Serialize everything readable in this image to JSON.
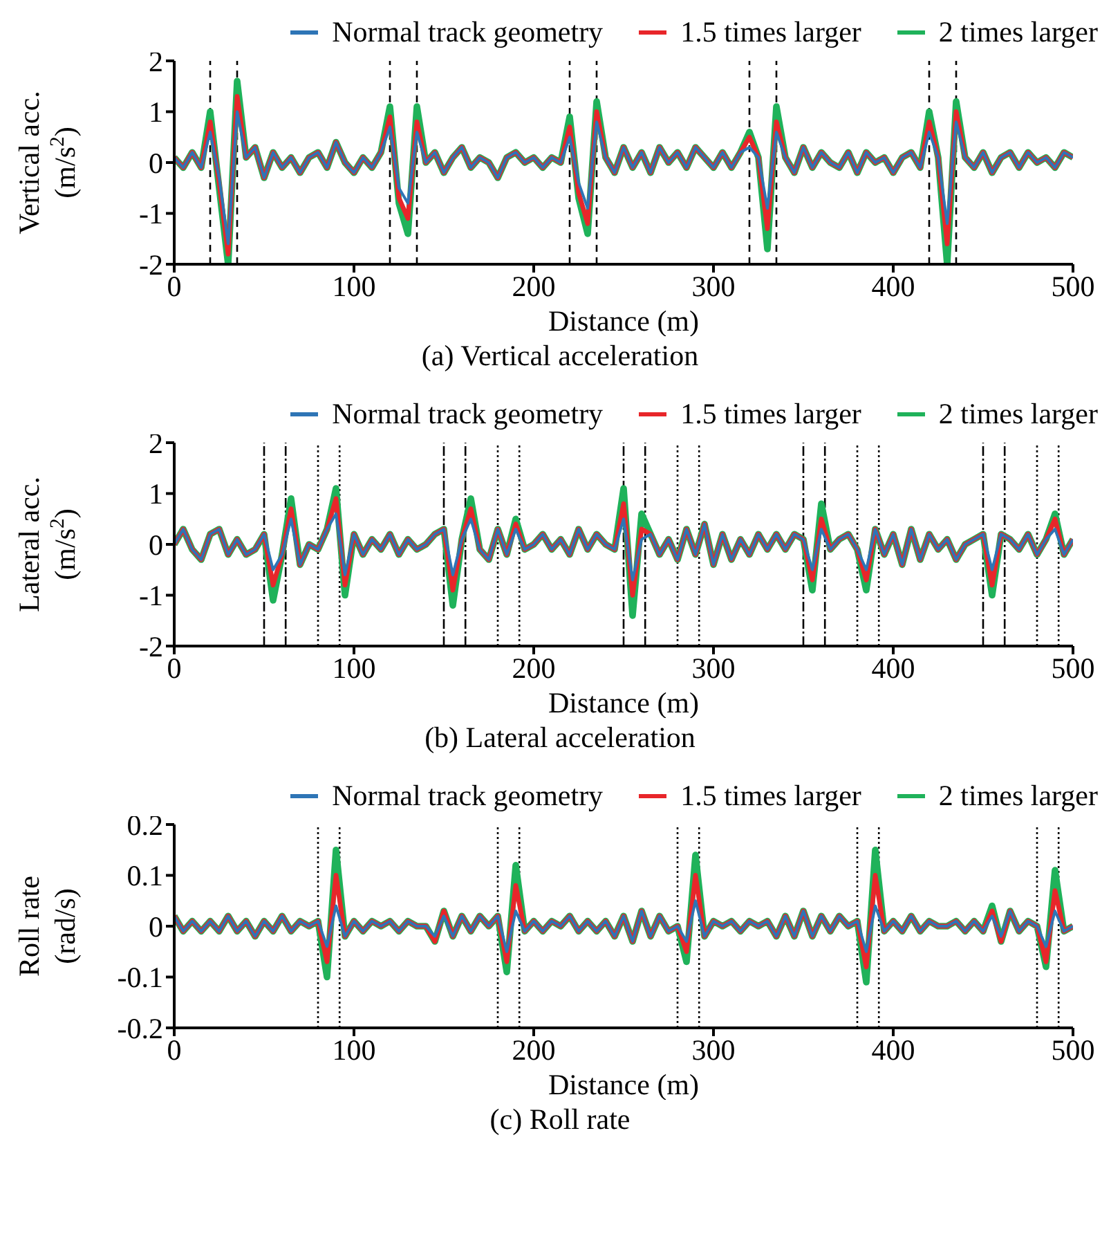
{
  "chart_data": [
    {
      "type": "line",
      "title": "(a) Vertical acceleration",
      "xlabel": "Distance (m)",
      "ylabel": "Vertical acc. (m/s$^{2}$)",
      "legend": "top",
      "xlim": [
        0,
        500
      ],
      "xticks": [
        0,
        100,
        200,
        300,
        400,
        500
      ],
      "ylim": [
        -2,
        2
      ],
      "yticks": [
        -2,
        -1,
        0,
        1,
        2
      ],
      "x": [
        0,
        5,
        10,
        15,
        20,
        25,
        30,
        35,
        40,
        45,
        50,
        55,
        60,
        65,
        70,
        75,
        80,
        85,
        90,
        95,
        100,
        105,
        110,
        115,
        120,
        125,
        130,
        135,
        140,
        145,
        150,
        155,
        160,
        165,
        170,
        175,
        180,
        185,
        190,
        195,
        200,
        205,
        210,
        215,
        220,
        225,
        230,
        235,
        240,
        245,
        250,
        255,
        260,
        265,
        270,
        275,
        280,
        285,
        290,
        295,
        300,
        305,
        310,
        315,
        320,
        325,
        330,
        335,
        340,
        345,
        350,
        355,
        360,
        365,
        370,
        375,
        380,
        385,
        390,
        395,
        400,
        405,
        410,
        415,
        420,
        425,
        430,
        435,
        440,
        445,
        450,
        455,
        460,
        465,
        470,
        475,
        480,
        485,
        490,
        495,
        500
      ],
      "series": [
        {
          "name": "Normal track geometry",
          "color": "#2e75b6",
          "values": [
            0.1,
            -0.1,
            0.2,
            -0.1,
            0.6,
            -0.3,
            -1.6,
            1.0,
            0.1,
            0.3,
            -0.3,
            0.2,
            -0.1,
            0.1,
            -0.2,
            0.1,
            0.2,
            -0.1,
            0.4,
            0.0,
            -0.2,
            0.1,
            -0.1,
            0.2,
            0.7,
            -0.5,
            -0.8,
            0.6,
            0.0,
            0.2,
            -0.2,
            0.1,
            0.3,
            -0.1,
            0.1,
            0.0,
            -0.3,
            0.1,
            0.2,
            0.0,
            0.1,
            -0.1,
            0.1,
            0.0,
            0.5,
            -0.4,
            -0.9,
            0.8,
            0.1,
            -0.2,
            0.3,
            -0.1,
            0.2,
            -0.2,
            0.3,
            0.0,
            0.2,
            -0.1,
            0.3,
            0.1,
            -0.1,
            0.2,
            -0.1,
            0.2,
            0.3,
            0.1,
            -0.9,
            0.6,
            0.1,
            -0.2,
            0.3,
            -0.1,
            0.2,
            0.0,
            -0.1,
            0.2,
            -0.2,
            0.2,
            0.0,
            0.1,
            -0.2,
            0.1,
            0.2,
            -0.1,
            0.6,
            0.1,
            -1.2,
            0.8,
            0.1,
            -0.1,
            0.2,
            -0.2,
            0.1,
            0.2,
            -0.1,
            0.2,
            0.0,
            0.1,
            -0.1,
            0.2,
            0.1
          ]
        },
        {
          "name": "1.5 times larger",
          "color": "#e8262a",
          "values": [
            0.1,
            -0.1,
            0.2,
            -0.1,
            0.8,
            -0.4,
            -1.8,
            1.3,
            0.1,
            0.3,
            -0.3,
            0.2,
            -0.1,
            0.1,
            -0.2,
            0.1,
            0.2,
            -0.1,
            0.4,
            0.0,
            -0.2,
            0.1,
            -0.1,
            0.2,
            0.9,
            -0.7,
            -1.1,
            0.8,
            0.0,
            0.2,
            -0.2,
            0.1,
            0.3,
            -0.1,
            0.1,
            0.0,
            -0.3,
            0.1,
            0.2,
            0.0,
            0.1,
            -0.1,
            0.1,
            0.0,
            0.7,
            -0.6,
            -1.2,
            1.0,
            0.1,
            -0.2,
            0.3,
            -0.1,
            0.2,
            -0.2,
            0.3,
            0.0,
            0.2,
            -0.1,
            0.3,
            0.1,
            -0.1,
            0.2,
            -0.1,
            0.2,
            0.5,
            0.1,
            -1.3,
            0.8,
            0.1,
            -0.2,
            0.3,
            -0.1,
            0.2,
            0.0,
            -0.1,
            0.2,
            -0.2,
            0.2,
            0.0,
            0.1,
            -0.2,
            0.1,
            0.2,
            -0.1,
            0.8,
            0.1,
            -1.6,
            1.0,
            0.1,
            -0.1,
            0.2,
            -0.2,
            0.1,
            0.2,
            -0.1,
            0.2,
            0.0,
            0.1,
            -0.1,
            0.2,
            0.1
          ]
        },
        {
          "name": "2 times larger",
          "color": "#1fb25a",
          "values": [
            0.1,
            -0.1,
            0.2,
            -0.1,
            1.0,
            -0.5,
            -2.0,
            1.6,
            0.1,
            0.3,
            -0.3,
            0.2,
            -0.1,
            0.1,
            -0.2,
            0.1,
            0.2,
            -0.1,
            0.4,
            0.0,
            -0.2,
            0.1,
            -0.1,
            0.2,
            1.1,
            -0.8,
            -1.4,
            1.1,
            0.0,
            0.2,
            -0.2,
            0.1,
            0.3,
            -0.1,
            0.1,
            0.0,
            -0.3,
            0.1,
            0.2,
            0.0,
            0.1,
            -0.1,
            0.1,
            0.0,
            0.9,
            -0.7,
            -1.4,
            1.2,
            0.1,
            -0.2,
            0.3,
            -0.1,
            0.2,
            -0.2,
            0.3,
            0.0,
            0.2,
            -0.1,
            0.3,
            0.1,
            -0.1,
            0.2,
            -0.1,
            0.2,
            0.6,
            0.1,
            -1.7,
            1.1,
            0.1,
            -0.2,
            0.3,
            -0.1,
            0.2,
            0.0,
            -0.1,
            0.2,
            -0.2,
            0.2,
            0.0,
            0.1,
            -0.2,
            0.1,
            0.2,
            -0.1,
            1.0,
            0.1,
            -2.0,
            1.2,
            0.1,
            -0.1,
            0.2,
            -0.2,
            0.1,
            0.2,
            -0.1,
            0.2,
            0.0,
            0.1,
            -0.1,
            0.2,
            0.1
          ]
        }
      ],
      "ref_lines": [
        {
          "axis": "x",
          "value": 20,
          "line_style": "dashed"
        },
        {
          "axis": "x",
          "value": 35,
          "line_style": "dashed"
        },
        {
          "axis": "x",
          "value": 120,
          "line_style": "dashed"
        },
        {
          "axis": "x",
          "value": 135,
          "line_style": "dashed"
        },
        {
          "axis": "x",
          "value": 220,
          "line_style": "dashed"
        },
        {
          "axis": "x",
          "value": 235,
          "line_style": "dashed"
        },
        {
          "axis": "x",
          "value": 320,
          "line_style": "dashed"
        },
        {
          "axis": "x",
          "value": 335,
          "line_style": "dashed"
        },
        {
          "axis": "x",
          "value": 420,
          "line_style": "dashed"
        },
        {
          "axis": "x",
          "value": 435,
          "line_style": "dashed"
        }
      ]
    },
    {
      "type": "line",
      "title": "(b) Lateral acceleration",
      "xlabel": "Distance (m)",
      "ylabel": "Lateral acc. (m/s$^{2}$)",
      "legend": "top",
      "xlim": [
        0,
        500
      ],
      "xticks": [
        0,
        100,
        200,
        300,
        400,
        500
      ],
      "ylim": [
        -2,
        2
      ],
      "yticks": [
        -2,
        -1,
        0,
        1,
        2
      ],
      "x": [
        0,
        5,
        10,
        15,
        20,
        25,
        30,
        35,
        40,
        45,
        50,
        55,
        60,
        65,
        70,
        75,
        80,
        85,
        90,
        95,
        100,
        105,
        110,
        115,
        120,
        125,
        130,
        135,
        140,
        145,
        150,
        155,
        160,
        165,
        170,
        175,
        180,
        185,
        190,
        195,
        200,
        205,
        210,
        215,
        220,
        225,
        230,
        235,
        240,
        245,
        250,
        255,
        260,
        265,
        270,
        275,
        280,
        285,
        290,
        295,
        300,
        305,
        310,
        315,
        320,
        325,
        330,
        335,
        340,
        345,
        350,
        355,
        360,
        365,
        370,
        375,
        380,
        385,
        390,
        395,
        400,
        405,
        410,
        415,
        420,
        425,
        430,
        435,
        440,
        445,
        450,
        455,
        460,
        465,
        470,
        475,
        480,
        485,
        490,
        495,
        500
      ],
      "series": [
        {
          "name": "Normal track geometry",
          "color": "#2e75b6",
          "values": [
            0.0,
            0.3,
            -0.1,
            -0.3,
            0.2,
            0.3,
            -0.2,
            0.1,
            -0.2,
            -0.1,
            0.2,
            -0.5,
            -0.2,
            0.5,
            -0.4,
            0.0,
            -0.1,
            0.3,
            0.6,
            -0.6,
            0.2,
            -0.2,
            0.1,
            -0.1,
            0.2,
            -0.2,
            0.1,
            -0.1,
            0.0,
            0.2,
            0.3,
            -0.6,
            0.1,
            0.5,
            -0.1,
            -0.3,
            0.3,
            -0.2,
            0.3,
            -0.1,
            0.0,
            0.2,
            -0.1,
            0.1,
            -0.2,
            0.3,
            -0.1,
            0.2,
            0.0,
            -0.1,
            0.5,
            -0.7,
            0.1,
            0.2,
            -0.2,
            0.1,
            -0.3,
            0.3,
            -0.2,
            0.4,
            -0.4,
            0.2,
            -0.3,
            0.1,
            -0.2,
            0.2,
            -0.1,
            0.2,
            -0.1,
            0.2,
            0.1,
            -0.5,
            0.3,
            -0.1,
            0.1,
            0.2,
            -0.1,
            -0.5,
            0.3,
            -0.2,
            0.2,
            -0.4,
            0.3,
            -0.3,
            0.2,
            -0.1,
            0.1,
            -0.3,
            0.0,
            0.1,
            0.2,
            -0.5,
            0.2,
            0.1,
            -0.1,
            0.2,
            -0.2,
            0.1,
            0.3,
            -0.2,
            0.1
          ]
        },
        {
          "name": "1.5 times larger",
          "color": "#e8262a",
          "values": [
            0.0,
            0.3,
            -0.1,
            -0.3,
            0.2,
            0.3,
            -0.2,
            0.1,
            -0.2,
            -0.1,
            0.2,
            -0.8,
            -0.2,
            0.7,
            -0.4,
            0.0,
            -0.1,
            0.3,
            0.9,
            -0.8,
            0.2,
            -0.2,
            0.1,
            -0.1,
            0.2,
            -0.2,
            0.1,
            -0.1,
            0.0,
            0.2,
            0.3,
            -0.9,
            0.1,
            0.7,
            -0.1,
            -0.3,
            0.3,
            -0.2,
            0.4,
            -0.1,
            0.0,
            0.2,
            -0.1,
            0.1,
            -0.2,
            0.3,
            -0.1,
            0.2,
            0.0,
            -0.1,
            0.8,
            -1.0,
            0.3,
            0.2,
            -0.2,
            0.1,
            -0.3,
            0.3,
            -0.2,
            0.4,
            -0.4,
            0.2,
            -0.3,
            0.1,
            -0.2,
            0.2,
            -0.1,
            0.2,
            -0.1,
            0.2,
            0.1,
            -0.7,
            0.5,
            -0.1,
            0.1,
            0.2,
            -0.1,
            -0.7,
            0.3,
            -0.2,
            0.2,
            -0.4,
            0.3,
            -0.3,
            0.2,
            -0.1,
            0.1,
            -0.3,
            0.0,
            0.1,
            0.2,
            -0.8,
            0.2,
            0.1,
            -0.1,
            0.2,
            -0.2,
            0.1,
            0.5,
            -0.2,
            0.1
          ]
        },
        {
          "name": "2 times larger",
          "color": "#1fb25a",
          "values": [
            0.0,
            0.3,
            -0.1,
            -0.3,
            0.2,
            0.3,
            -0.2,
            0.1,
            -0.2,
            -0.1,
            0.2,
            -1.1,
            -0.2,
            0.9,
            -0.4,
            0.0,
            -0.1,
            0.3,
            1.1,
            -1.0,
            0.2,
            -0.2,
            0.1,
            -0.1,
            0.2,
            -0.2,
            0.1,
            -0.1,
            0.0,
            0.2,
            0.3,
            -1.2,
            0.1,
            0.9,
            -0.1,
            -0.3,
            0.3,
            -0.2,
            0.5,
            -0.1,
            0.0,
            0.2,
            -0.1,
            0.1,
            -0.2,
            0.3,
            -0.1,
            0.2,
            0.0,
            -0.1,
            1.1,
            -1.4,
            0.6,
            0.2,
            -0.2,
            0.1,
            -0.3,
            0.3,
            -0.2,
            0.4,
            -0.4,
            0.2,
            -0.3,
            0.1,
            -0.2,
            0.2,
            -0.1,
            0.2,
            -0.1,
            0.2,
            0.1,
            -0.9,
            0.8,
            -0.1,
            0.1,
            0.2,
            -0.1,
            -0.9,
            0.3,
            -0.2,
            0.2,
            -0.4,
            0.3,
            -0.3,
            0.2,
            -0.1,
            0.1,
            -0.3,
            0.0,
            0.1,
            0.2,
            -1.0,
            0.2,
            0.1,
            -0.1,
            0.2,
            -0.2,
            0.1,
            0.6,
            -0.2,
            0.1
          ]
        }
      ],
      "ref_lines": [
        {
          "axis": "x",
          "value": 50,
          "line_style": "dashdot"
        },
        {
          "axis": "x",
          "value": 62,
          "line_style": "dashdot"
        },
        {
          "axis": "x",
          "value": 80,
          "line_style": "dotted"
        },
        {
          "axis": "x",
          "value": 92,
          "line_style": "dotted"
        },
        {
          "axis": "x",
          "value": 150,
          "line_style": "dashdot"
        },
        {
          "axis": "x",
          "value": 162,
          "line_style": "dashdot"
        },
        {
          "axis": "x",
          "value": 180,
          "line_style": "dotted"
        },
        {
          "axis": "x",
          "value": 192,
          "line_style": "dotted"
        },
        {
          "axis": "x",
          "value": 250,
          "line_style": "dashdot"
        },
        {
          "axis": "x",
          "value": 262,
          "line_style": "dashdot"
        },
        {
          "axis": "x",
          "value": 280,
          "line_style": "dotted"
        },
        {
          "axis": "x",
          "value": 292,
          "line_style": "dotted"
        },
        {
          "axis": "x",
          "value": 350,
          "line_style": "dashdot"
        },
        {
          "axis": "x",
          "value": 362,
          "line_style": "dashdot"
        },
        {
          "axis": "x",
          "value": 380,
          "line_style": "dotted"
        },
        {
          "axis": "x",
          "value": 392,
          "line_style": "dotted"
        },
        {
          "axis": "x",
          "value": 450,
          "line_style": "dashdot"
        },
        {
          "axis": "x",
          "value": 462,
          "line_style": "dashdot"
        },
        {
          "axis": "x",
          "value": 480,
          "line_style": "dotted"
        },
        {
          "axis": "x",
          "value": 492,
          "line_style": "dotted"
        }
      ]
    },
    {
      "type": "line",
      "title": "(c) Roll rate",
      "xlabel": "Distance (m)",
      "ylabel": "Roll rate (rad/s)",
      "legend": "top",
      "xlim": [
        0,
        500
      ],
      "xticks": [
        0,
        100,
        200,
        300,
        400,
        500
      ],
      "ylim": [
        -0.2,
        0.2
      ],
      "yticks": [
        -0.2,
        -0.1,
        0,
        0.1,
        0.2
      ],
      "x": [
        0,
        5,
        10,
        15,
        20,
        25,
        30,
        35,
        40,
        45,
        50,
        55,
        60,
        65,
        70,
        75,
        80,
        85,
        90,
        95,
        100,
        105,
        110,
        115,
        120,
        125,
        130,
        135,
        140,
        145,
        150,
        155,
        160,
        165,
        170,
        175,
        180,
        185,
        190,
        195,
        200,
        205,
        210,
        215,
        220,
        225,
        230,
        235,
        240,
        245,
        250,
        255,
        260,
        265,
        270,
        275,
        280,
        285,
        290,
        295,
        300,
        305,
        310,
        315,
        320,
        325,
        330,
        335,
        340,
        345,
        350,
        355,
        360,
        365,
        370,
        375,
        380,
        385,
        390,
        395,
        400,
        405,
        410,
        415,
        420,
        425,
        430,
        435,
        440,
        445,
        450,
        455,
        460,
        465,
        470,
        475,
        480,
        485,
        490,
        495,
        500
      ],
      "series": [
        {
          "name": "Normal track geometry",
          "color": "#2e75b6",
          "values": [
            0.02,
            -0.01,
            0.01,
            -0.01,
            0.01,
            -0.01,
            0.02,
            -0.01,
            0.01,
            -0.02,
            0.01,
            -0.01,
            0.02,
            -0.01,
            0.01,
            0.0,
            0.01,
            -0.04,
            0.04,
            -0.02,
            0.01,
            -0.01,
            0.01,
            0.0,
            0.01,
            -0.01,
            0.01,
            0.0,
            0.0,
            -0.02,
            0.02,
            -0.02,
            0.02,
            -0.01,
            0.02,
            0.0,
            0.02,
            -0.05,
            0.03,
            -0.01,
            0.01,
            -0.01,
            0.01,
            0.0,
            0.02,
            -0.01,
            0.01,
            -0.01,
            0.01,
            -0.02,
            0.02,
            -0.03,
            0.03,
            -0.02,
            0.02,
            -0.01,
            0.0,
            -0.03,
            0.05,
            -0.02,
            0.01,
            0.0,
            0.01,
            -0.01,
            0.01,
            0.0,
            0.01,
            -0.02,
            0.02,
            -0.02,
            0.03,
            -0.02,
            0.02,
            -0.01,
            0.02,
            0.0,
            0.01,
            -0.05,
            0.04,
            -0.01,
            0.01,
            -0.01,
            0.02,
            -0.01,
            0.01,
            0.0,
            0.0,
            0.01,
            -0.01,
            0.01,
            -0.01,
            0.02,
            -0.02,
            0.03,
            -0.01,
            0.01,
            0.0,
            -0.04,
            0.03,
            -0.01,
            0.0
          ]
        },
        {
          "name": "1.5 times larger",
          "color": "#e8262a",
          "values": [
            0.02,
            -0.01,
            0.01,
            -0.01,
            0.01,
            -0.01,
            0.02,
            -0.01,
            0.01,
            -0.02,
            0.01,
            -0.01,
            0.02,
            -0.01,
            0.01,
            0.0,
            0.01,
            -0.07,
            0.1,
            -0.02,
            0.01,
            -0.01,
            0.01,
            0.0,
            0.01,
            -0.01,
            0.01,
            0.0,
            0.0,
            -0.03,
            0.03,
            -0.02,
            0.02,
            -0.01,
            0.02,
            0.0,
            0.02,
            -0.07,
            0.08,
            -0.01,
            0.01,
            -0.01,
            0.01,
            0.0,
            0.02,
            -0.01,
            0.01,
            -0.01,
            0.01,
            -0.02,
            0.02,
            -0.03,
            0.03,
            -0.02,
            0.02,
            -0.01,
            0.0,
            -0.05,
            0.1,
            -0.02,
            0.01,
            0.0,
            0.01,
            -0.01,
            0.01,
            0.0,
            0.01,
            -0.02,
            0.02,
            -0.02,
            0.03,
            -0.02,
            0.02,
            -0.01,
            0.02,
            0.0,
            0.01,
            -0.08,
            0.1,
            -0.01,
            0.01,
            -0.01,
            0.02,
            -0.01,
            0.01,
            0.0,
            0.0,
            0.01,
            -0.01,
            0.01,
            -0.01,
            0.03,
            -0.03,
            0.03,
            -0.01,
            0.01,
            0.0,
            -0.07,
            0.07,
            -0.01,
            0.0
          ]
        },
        {
          "name": "2 times larger",
          "color": "#1fb25a",
          "values": [
            0.02,
            -0.01,
            0.01,
            -0.01,
            0.01,
            -0.01,
            0.02,
            -0.01,
            0.01,
            -0.02,
            0.01,
            -0.01,
            0.02,
            -0.01,
            0.01,
            0.0,
            0.01,
            -0.1,
            0.15,
            -0.02,
            0.01,
            -0.01,
            0.01,
            0.0,
            0.01,
            -0.01,
            0.01,
            0.0,
            0.0,
            -0.03,
            0.03,
            -0.02,
            0.02,
            -0.01,
            0.02,
            0.0,
            0.02,
            -0.09,
            0.12,
            -0.01,
            0.01,
            -0.01,
            0.01,
            0.0,
            0.02,
            -0.01,
            0.01,
            -0.01,
            0.01,
            -0.02,
            0.02,
            -0.03,
            0.03,
            -0.02,
            0.02,
            -0.01,
            0.0,
            -0.07,
            0.14,
            -0.02,
            0.01,
            0.0,
            0.01,
            -0.01,
            0.01,
            0.0,
            0.01,
            -0.02,
            0.02,
            -0.02,
            0.03,
            -0.02,
            0.02,
            -0.01,
            0.02,
            0.0,
            0.01,
            -0.11,
            0.15,
            -0.01,
            0.01,
            -0.01,
            0.02,
            -0.01,
            0.01,
            0.0,
            0.0,
            0.01,
            -0.01,
            0.01,
            -0.01,
            0.04,
            -0.03,
            0.03,
            -0.01,
            0.01,
            0.0,
            -0.08,
            0.11,
            -0.01,
            0.0
          ]
        }
      ],
      "ref_lines": [
        {
          "axis": "x",
          "value": 80,
          "line_style": "dotted"
        },
        {
          "axis": "x",
          "value": 92,
          "line_style": "dotted"
        },
        {
          "axis": "x",
          "value": 180,
          "line_style": "dotted"
        },
        {
          "axis": "x",
          "value": 192,
          "line_style": "dotted"
        },
        {
          "axis": "x",
          "value": 280,
          "line_style": "dotted"
        },
        {
          "axis": "x",
          "value": 292,
          "line_style": "dotted"
        },
        {
          "axis": "x",
          "value": 380,
          "line_style": "dotted"
        },
        {
          "axis": "x",
          "value": 392,
          "line_style": "dotted"
        },
        {
          "axis": "x",
          "value": 480,
          "line_style": "dotted"
        },
        {
          "axis": "x",
          "value": 492,
          "line_style": "dotted"
        }
      ]
    }
  ]
}
